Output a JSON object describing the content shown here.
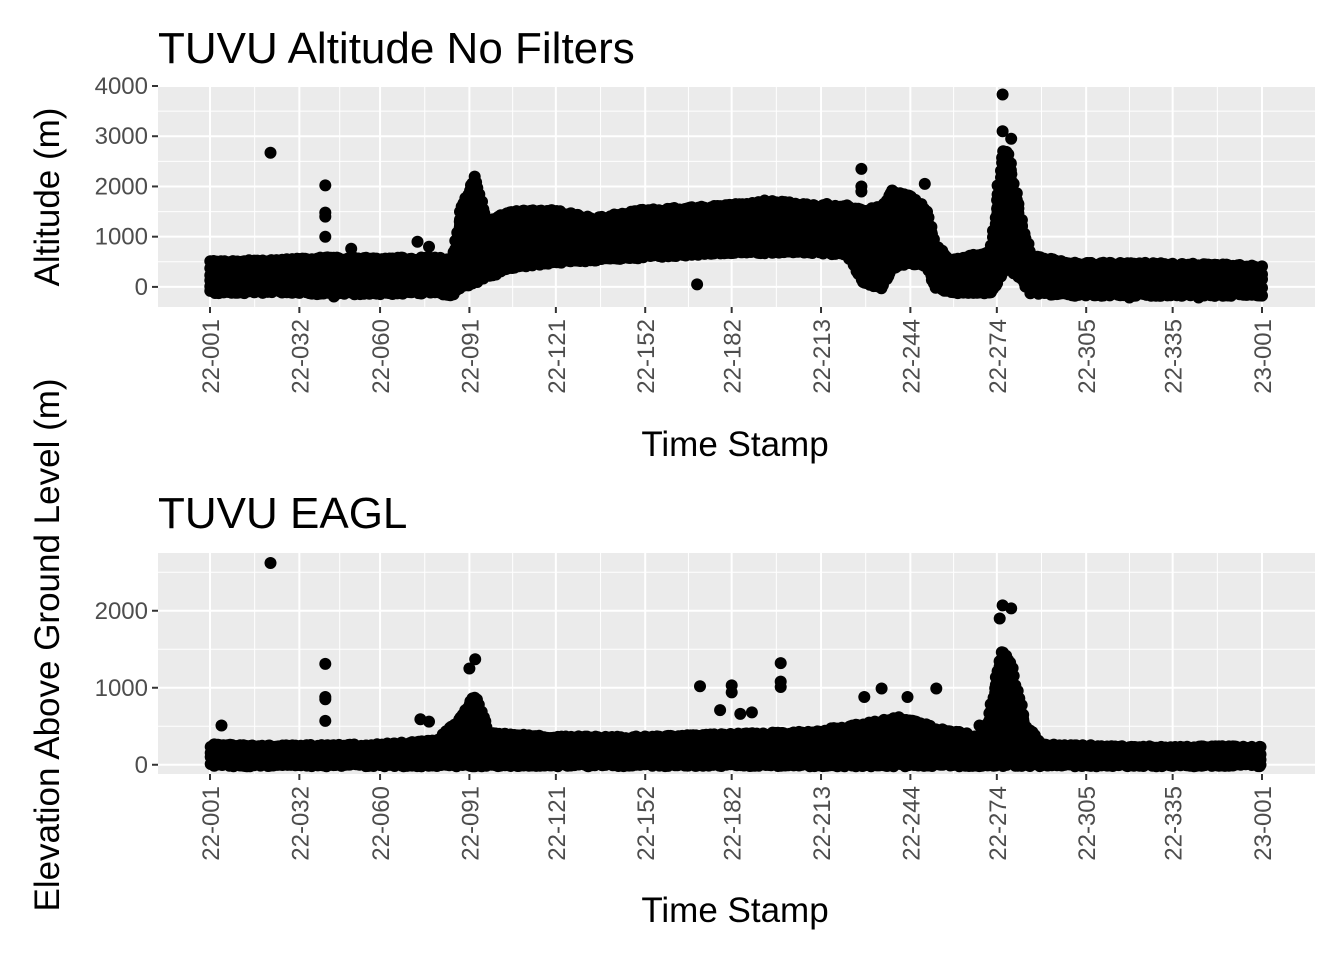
{
  "chart_data": [
    {
      "type": "scatter",
      "title": "TUVU Altitude No Filters",
      "xlabel": "Time Stamp",
      "ylabel": "Altitude (m)",
      "x_tick_labels": [
        "22-001",
        "22-032",
        "22-060",
        "22-091",
        "22-121",
        "22-152",
        "22-182",
        "22-213",
        "22-244",
        "22-274",
        "22-305",
        "22-335",
        "23-001"
      ],
      "x_tick_days": [
        1,
        32,
        60,
        91,
        121,
        152,
        182,
        213,
        244,
        274,
        305,
        335,
        366
      ],
      "y_ticks": [
        0,
        1000,
        2000,
        3000,
        4000
      ],
      "ylim": [
        -400,
        4000
      ],
      "xlim": [
        1,
        366
      ],
      "grid": true,
      "point_color": "#000000",
      "envelope": [
        [
          1,
          -100,
          500
        ],
        [
          10,
          -100,
          500
        ],
        [
          25,
          -80,
          520
        ],
        [
          40,
          -120,
          560
        ],
        [
          60,
          -120,
          550
        ],
        [
          80,
          -100,
          560
        ],
        [
          85,
          -150,
          500
        ],
        [
          88,
          0,
          1500
        ],
        [
          93,
          100,
          2200
        ],
        [
          97,
          200,
          1300
        ],
        [
          105,
          400,
          1500
        ],
        [
          120,
          500,
          1500
        ],
        [
          135,
          550,
          1350
        ],
        [
          150,
          600,
          1500
        ],
        [
          165,
          650,
          1550
        ],
        [
          180,
          700,
          1600
        ],
        [
          195,
          700,
          1700
        ],
        [
          210,
          700,
          1600
        ],
        [
          222,
          650,
          1600
        ],
        [
          228,
          100,
          1500
        ],
        [
          234,
          0,
          1600
        ],
        [
          238,
          400,
          1900
        ],
        [
          244,
          500,
          1800
        ],
        [
          250,
          400,
          1500
        ],
        [
          253,
          0,
          800
        ],
        [
          258,
          -100,
          500
        ],
        [
          272,
          -100,
          700
        ],
        [
          276,
          300,
          2700
        ],
        [
          278,
          400,
          2700
        ],
        [
          282,
          200,
          1400
        ],
        [
          286,
          -100,
          600
        ],
        [
          300,
          -150,
          450
        ],
        [
          330,
          -150,
          450
        ],
        [
          365,
          -150,
          400
        ]
      ],
      "outliers": [
        [
          22,
          2670
        ],
        [
          41,
          2020
        ],
        [
          41,
          1480
        ],
        [
          41,
          1400
        ],
        [
          41,
          1000
        ],
        [
          41,
          580
        ],
        [
          42,
          300
        ],
        [
          44,
          -190
        ],
        [
          50,
          760
        ],
        [
          73,
          900
        ],
        [
          77,
          800
        ],
        [
          170,
          50
        ],
        [
          215,
          1650
        ],
        [
          227,
          2350
        ],
        [
          227,
          2000
        ],
        [
          227,
          1900
        ],
        [
          241,
          1850
        ],
        [
          249,
          2050
        ],
        [
          276,
          3830
        ],
        [
          276,
          3100
        ],
        [
          279,
          2950
        ],
        [
          292,
          -80
        ],
        [
          320,
          -210
        ],
        [
          344,
          -210
        ]
      ]
    },
    {
      "type": "scatter",
      "title": "TUVU EAGL",
      "xlabel": "Time Stamp",
      "ylabel": "Elevation Above Ground Level (m)",
      "x_tick_labels": [
        "22-001",
        "22-032",
        "22-060",
        "22-091",
        "22-121",
        "22-152",
        "22-182",
        "22-213",
        "22-244",
        "22-274",
        "22-305",
        "22-335",
        "23-001"
      ],
      "x_tick_days": [
        1,
        32,
        60,
        91,
        121,
        152,
        182,
        213,
        244,
        274,
        305,
        335,
        366
      ],
      "y_ticks": [
        0,
        1000,
        2000
      ],
      "ylim": [
        -120,
        2750
      ],
      "xlim": [
        1,
        366
      ],
      "grid": true,
      "point_color": "#000000",
      "envelope": [
        [
          1,
          0,
          250
        ],
        [
          20,
          0,
          230
        ],
        [
          40,
          0,
          240
        ],
        [
          60,
          0,
          250
        ],
        [
          80,
          0,
          300
        ],
        [
          88,
          0,
          600
        ],
        [
          93,
          0,
          900
        ],
        [
          98,
          0,
          400
        ],
        [
          120,
          0,
          350
        ],
        [
          150,
          0,
          350
        ],
        [
          180,
          0,
          380
        ],
        [
          210,
          0,
          420
        ],
        [
          225,
          0,
          500
        ],
        [
          240,
          0,
          600
        ],
        [
          255,
          0,
          450
        ],
        [
          270,
          0,
          350
        ],
        [
          276,
          0,
          1500
        ],
        [
          279,
          0,
          1300
        ],
        [
          284,
          0,
          500
        ],
        [
          290,
          0,
          250
        ],
        [
          320,
          0,
          220
        ],
        [
          365,
          0,
          220
        ]
      ],
      "outliers": [
        [
          22,
          2620
        ],
        [
          41,
          1310
        ],
        [
          41,
          880
        ],
        [
          41,
          850
        ],
        [
          41,
          570
        ],
        [
          5,
          510
        ],
        [
          74,
          590
        ],
        [
          77,
          560
        ],
        [
          93,
          1370
        ],
        [
          91,
          1250
        ],
        [
          171,
          1020
        ],
        [
          178,
          710
        ],
        [
          182,
          1030
        ],
        [
          182,
          940
        ],
        [
          185,
          660
        ],
        [
          189,
          680
        ],
        [
          199,
          1320
        ],
        [
          199,
          1080
        ],
        [
          199,
          1010
        ],
        [
          228,
          880
        ],
        [
          234,
          990
        ],
        [
          243,
          880
        ],
        [
          253,
          990
        ],
        [
          276,
          2070
        ],
        [
          279,
          2030
        ],
        [
          275,
          1900
        ],
        [
          268,
          510
        ]
      ]
    }
  ]
}
